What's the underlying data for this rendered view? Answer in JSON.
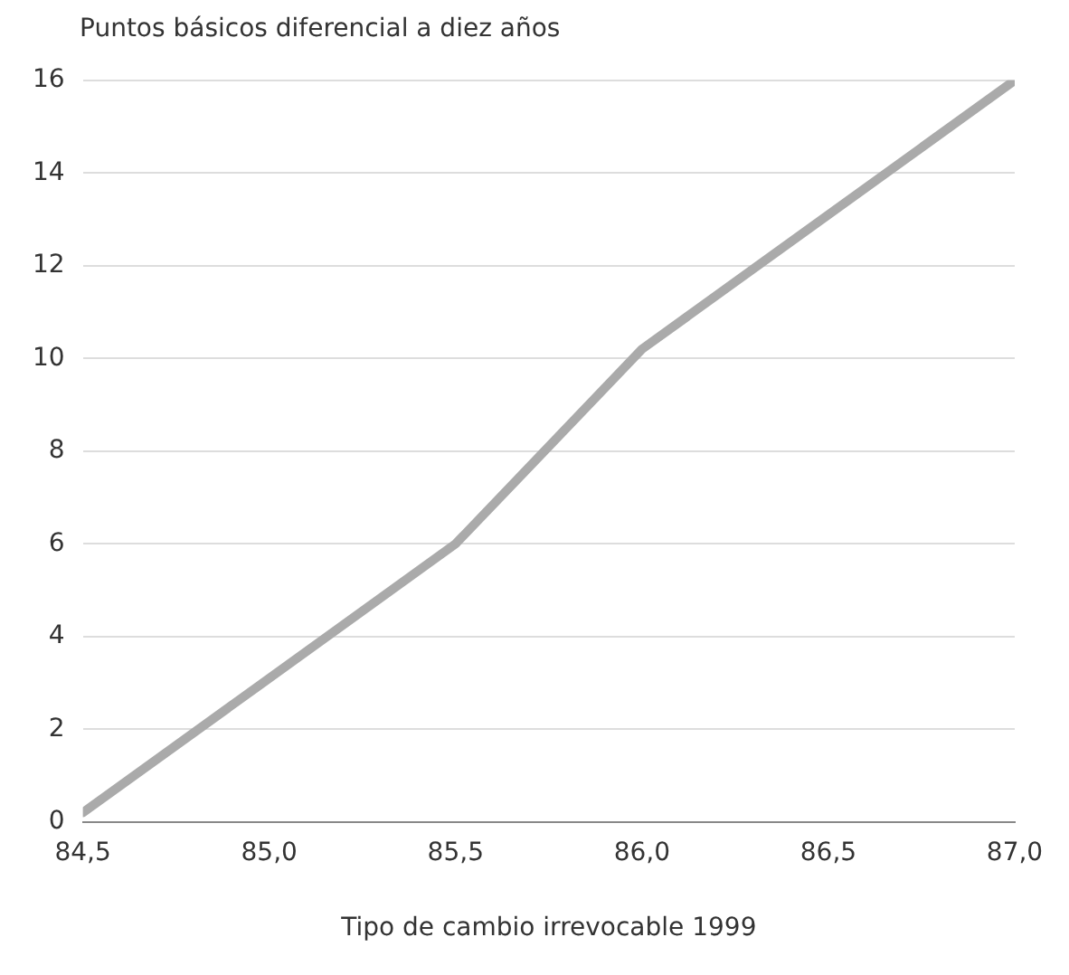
{
  "chart_data": {
    "type": "line",
    "ylabel": "Puntos básicos diferencial a diez años",
    "xlabel": "Tipo de cambio irrevocable 1999",
    "x": [
      84.5,
      85.5,
      86.0,
      87.0
    ],
    "series": [
      {
        "color": "#aaaaaa",
        "values": [
          0.2,
          6.0,
          10.2,
          16.0
        ]
      }
    ],
    "xlim": [
      84.5,
      87.0
    ],
    "xticks": [
      {
        "value": 84.5,
        "label": "84,5"
      },
      {
        "value": 85.0,
        "label": "85,0"
      },
      {
        "value": 85.5,
        "label": "85,5"
      },
      {
        "value": 86.0,
        "label": "86,0"
      },
      {
        "value": 86.5,
        "label": "86,5"
      },
      {
        "value": 87.0,
        "label": "87,0"
      }
    ],
    "ylim": [
      0,
      16
    ],
    "yticks": [
      0,
      2,
      4,
      6,
      8,
      10,
      12,
      14,
      16
    ],
    "grid": "y",
    "legend": false,
    "marker": "none",
    "line_style": "solid"
  }
}
